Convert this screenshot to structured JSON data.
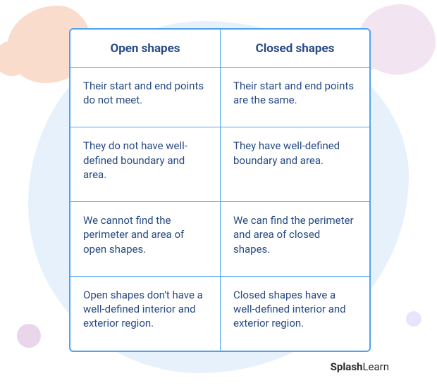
{
  "colors": {
    "border": "#4ea3f2",
    "text": "#284a84",
    "bg_blue": "#e7f1fb",
    "bg_peach": "#fadccd",
    "bg_pink": "#f2e4f0",
    "dot_lav": "#e9e4fb",
    "dot_pink": "#e9d6ea"
  },
  "table": {
    "headers": {
      "left": "Open shapes",
      "right": "Closed shapes"
    },
    "rows": [
      {
        "left": "Their start and end points do not meet.",
        "right": "Their start and end points are the same."
      },
      {
        "left": "They do not have well-defined boundary and area.",
        "right": "They have well-defined boundary and area."
      },
      {
        "left": "We cannot find the perimeter and area of open shapes.",
        "right": "We can find the perimeter and area of closed shapes."
      },
      {
        "left": "Open shapes don't have a well-defined interior and exterior region.",
        "right": "Closed shapes have a well-defined interior and exterior region."
      }
    ]
  },
  "brand": {
    "part1": "Splash",
    "part2": "Learn"
  }
}
